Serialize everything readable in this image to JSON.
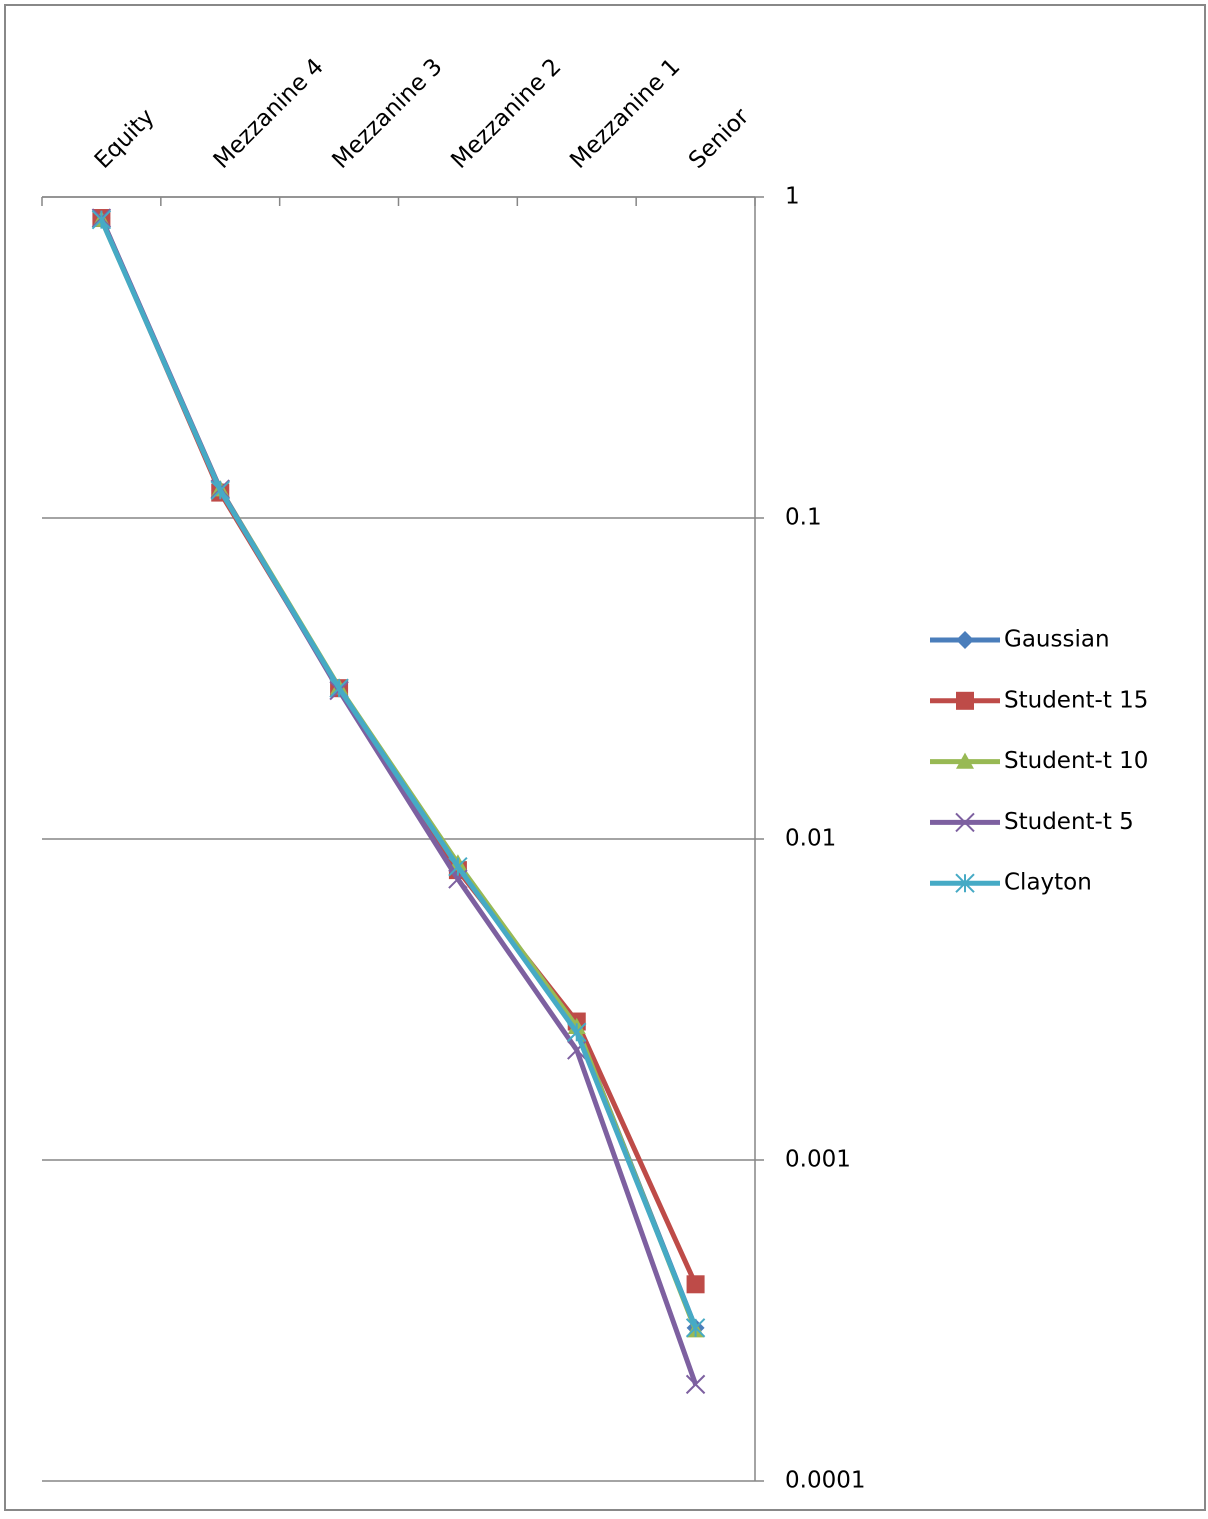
{
  "chart_data": {
    "type": "line",
    "categories": [
      "Equity",
      "Mezzanine 4",
      "Mezzanine 3",
      "Mezzanine 2",
      "Mezzanine 1",
      "Senior"
    ],
    "series": [
      {
        "name": "Gaussian",
        "color": "#4a7ebb",
        "marker": "diamond",
        "values": [
          0.86,
          0.122,
          0.0295,
          0.0081,
          0.0026,
          0.0003
        ]
      },
      {
        "name": "Student-t 15",
        "color": "#be4b48",
        "marker": "square",
        "values": [
          0.86,
          0.12,
          0.0295,
          0.008,
          0.0027,
          0.00041
        ]
      },
      {
        "name": "Student-t 10",
        "color": "#98b954",
        "marker": "triangle",
        "values": [
          0.85,
          0.123,
          0.0297,
          0.0084,
          0.0026,
          0.000295
        ]
      },
      {
        "name": "Student-t 5",
        "color": "#7d60a0",
        "marker": "x",
        "values": [
          0.86,
          0.123,
          0.029,
          0.0075,
          0.0022,
          0.0002
        ]
      },
      {
        "name": "Clayton",
        "color": "#46aac5",
        "marker": "star",
        "values": [
          0.85,
          0.122,
          0.0295,
          0.0082,
          0.0025,
          0.0003
        ]
      }
    ],
    "ylim": [
      0.0001,
      1
    ],
    "yticks": [
      0.0001,
      0.001,
      0.01,
      0.1,
      1
    ],
    "log_scale": true,
    "grid": true,
    "legend": "right"
  }
}
